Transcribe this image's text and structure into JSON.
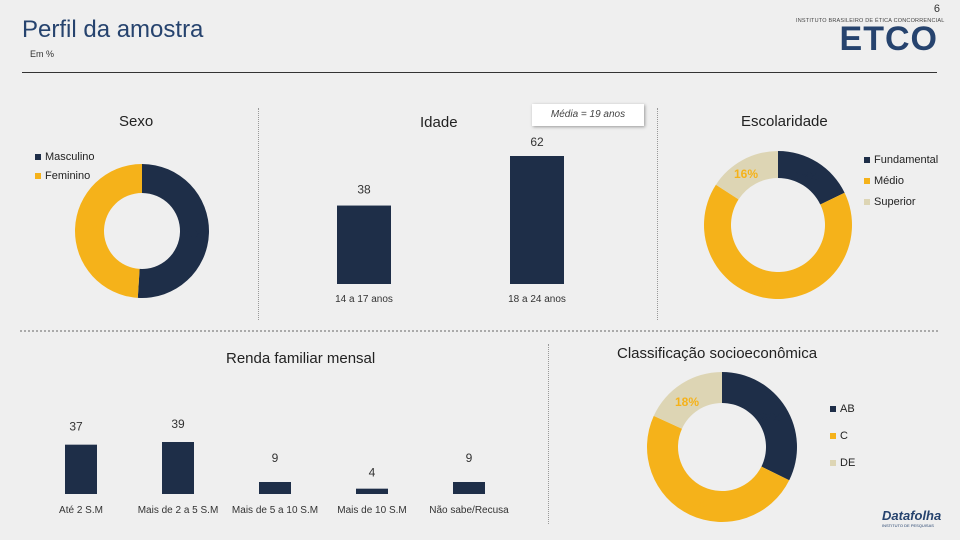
{
  "page_number": "6",
  "title": "Perfil da amostra",
  "subtitle": "Em %",
  "logos": {
    "etco_tagline": "INSTITUTO BRASILEIRO DE ÉTICA CONCORRENCIAL",
    "etco_word": "ETCO",
    "datafolha_word": "Datafolha",
    "datafolha_tagline": "INSTITUTO DE PESQUISAS"
  },
  "colors": {
    "navy": "#1e2e48",
    "gold": "#f5b21a",
    "beige": "#ddd5b4",
    "title_blue": "#26436e"
  },
  "chart_data": [
    {
      "type": "pie",
      "title": "Sexo",
      "categories": [
        "Masculino",
        "Feminino"
      ],
      "values": [
        51,
        49
      ],
      "labels": [
        "51%",
        "49%"
      ],
      "colors": [
        "#1e2e48",
        "#f5b21a"
      ],
      "legend": "top-left"
    },
    {
      "type": "bar",
      "title": "Idade",
      "annotation": "Média = 19 anos",
      "categories": [
        "14 a 17 anos",
        "18 a 24 anos"
      ],
      "values": [
        38,
        62
      ],
      "ylim": [
        0,
        62
      ]
    },
    {
      "type": "pie",
      "title": "Escolaridade",
      "categories": [
        "Fundamental",
        "Médio",
        "Superior"
      ],
      "values": [
        18,
        67,
        16
      ],
      "labels": [
        "18%",
        "67%",
        "16%"
      ],
      "colors": [
        "#1e2e48",
        "#f5b21a",
        "#ddd5b4"
      ],
      "legend": "right"
    },
    {
      "type": "bar",
      "title": "Renda familiar mensal",
      "categories": [
        "Até 2 S.M",
        "Mais de 2 a 5 S.M",
        "Mais de 5 a 10 S.M",
        "Mais de 10 S.M",
        "Não sabe/Recusa"
      ],
      "values": [
        37,
        39,
        9,
        4,
        9
      ],
      "ylim": [
        0,
        39
      ]
    },
    {
      "type": "pie",
      "title": "Classificação socioeconômica",
      "categories": [
        "AB",
        "C",
        "DE"
      ],
      "values": [
        32,
        49,
        18
      ],
      "labels": [
        "32%",
        "49%",
        "18%"
      ],
      "colors": [
        "#1e2e48",
        "#f5b21a",
        "#ddd5b4"
      ],
      "legend": "right"
    }
  ]
}
